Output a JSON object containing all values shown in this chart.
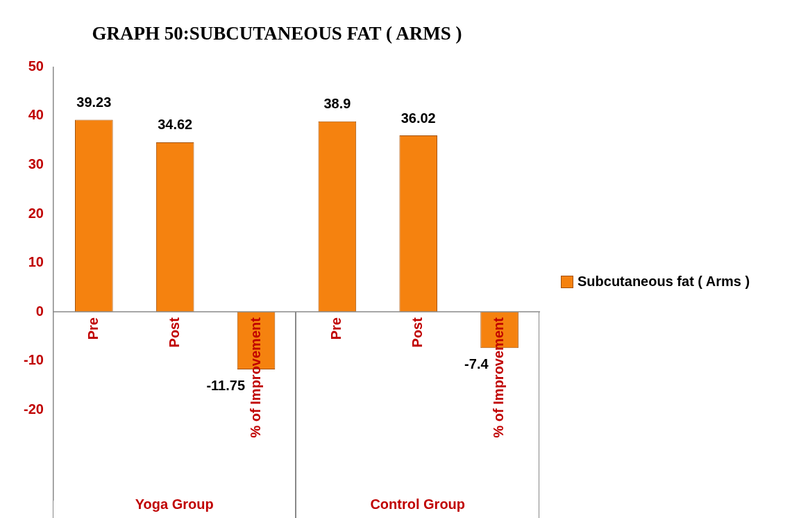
{
  "chart_data": {
    "type": "bar",
    "title": "GRAPH 50:SUBCUTANEOUS FAT ( ARMS )",
    "categories": [
      "Pre",
      "Post",
      "% of Improvement",
      "Pre",
      "Post",
      "% of Improvement"
    ],
    "series": [
      {
        "name": "Subcutaneous fat ( Arms )",
        "color": "#f5820f",
        "values": [
          39.23,
          34.62,
          -11.75,
          38.9,
          36.02,
          -7.4
        ]
      }
    ],
    "ylim": [
      -38.4,
      50
    ],
    "yticks": [
      -20,
      -10,
      0,
      10,
      20,
      30,
      40,
      50
    ],
    "annotations": [
      "Yoga Group",
      "Control Group"
    ],
    "data_labels": true,
    "grid": false,
    "legend": "right"
  }
}
